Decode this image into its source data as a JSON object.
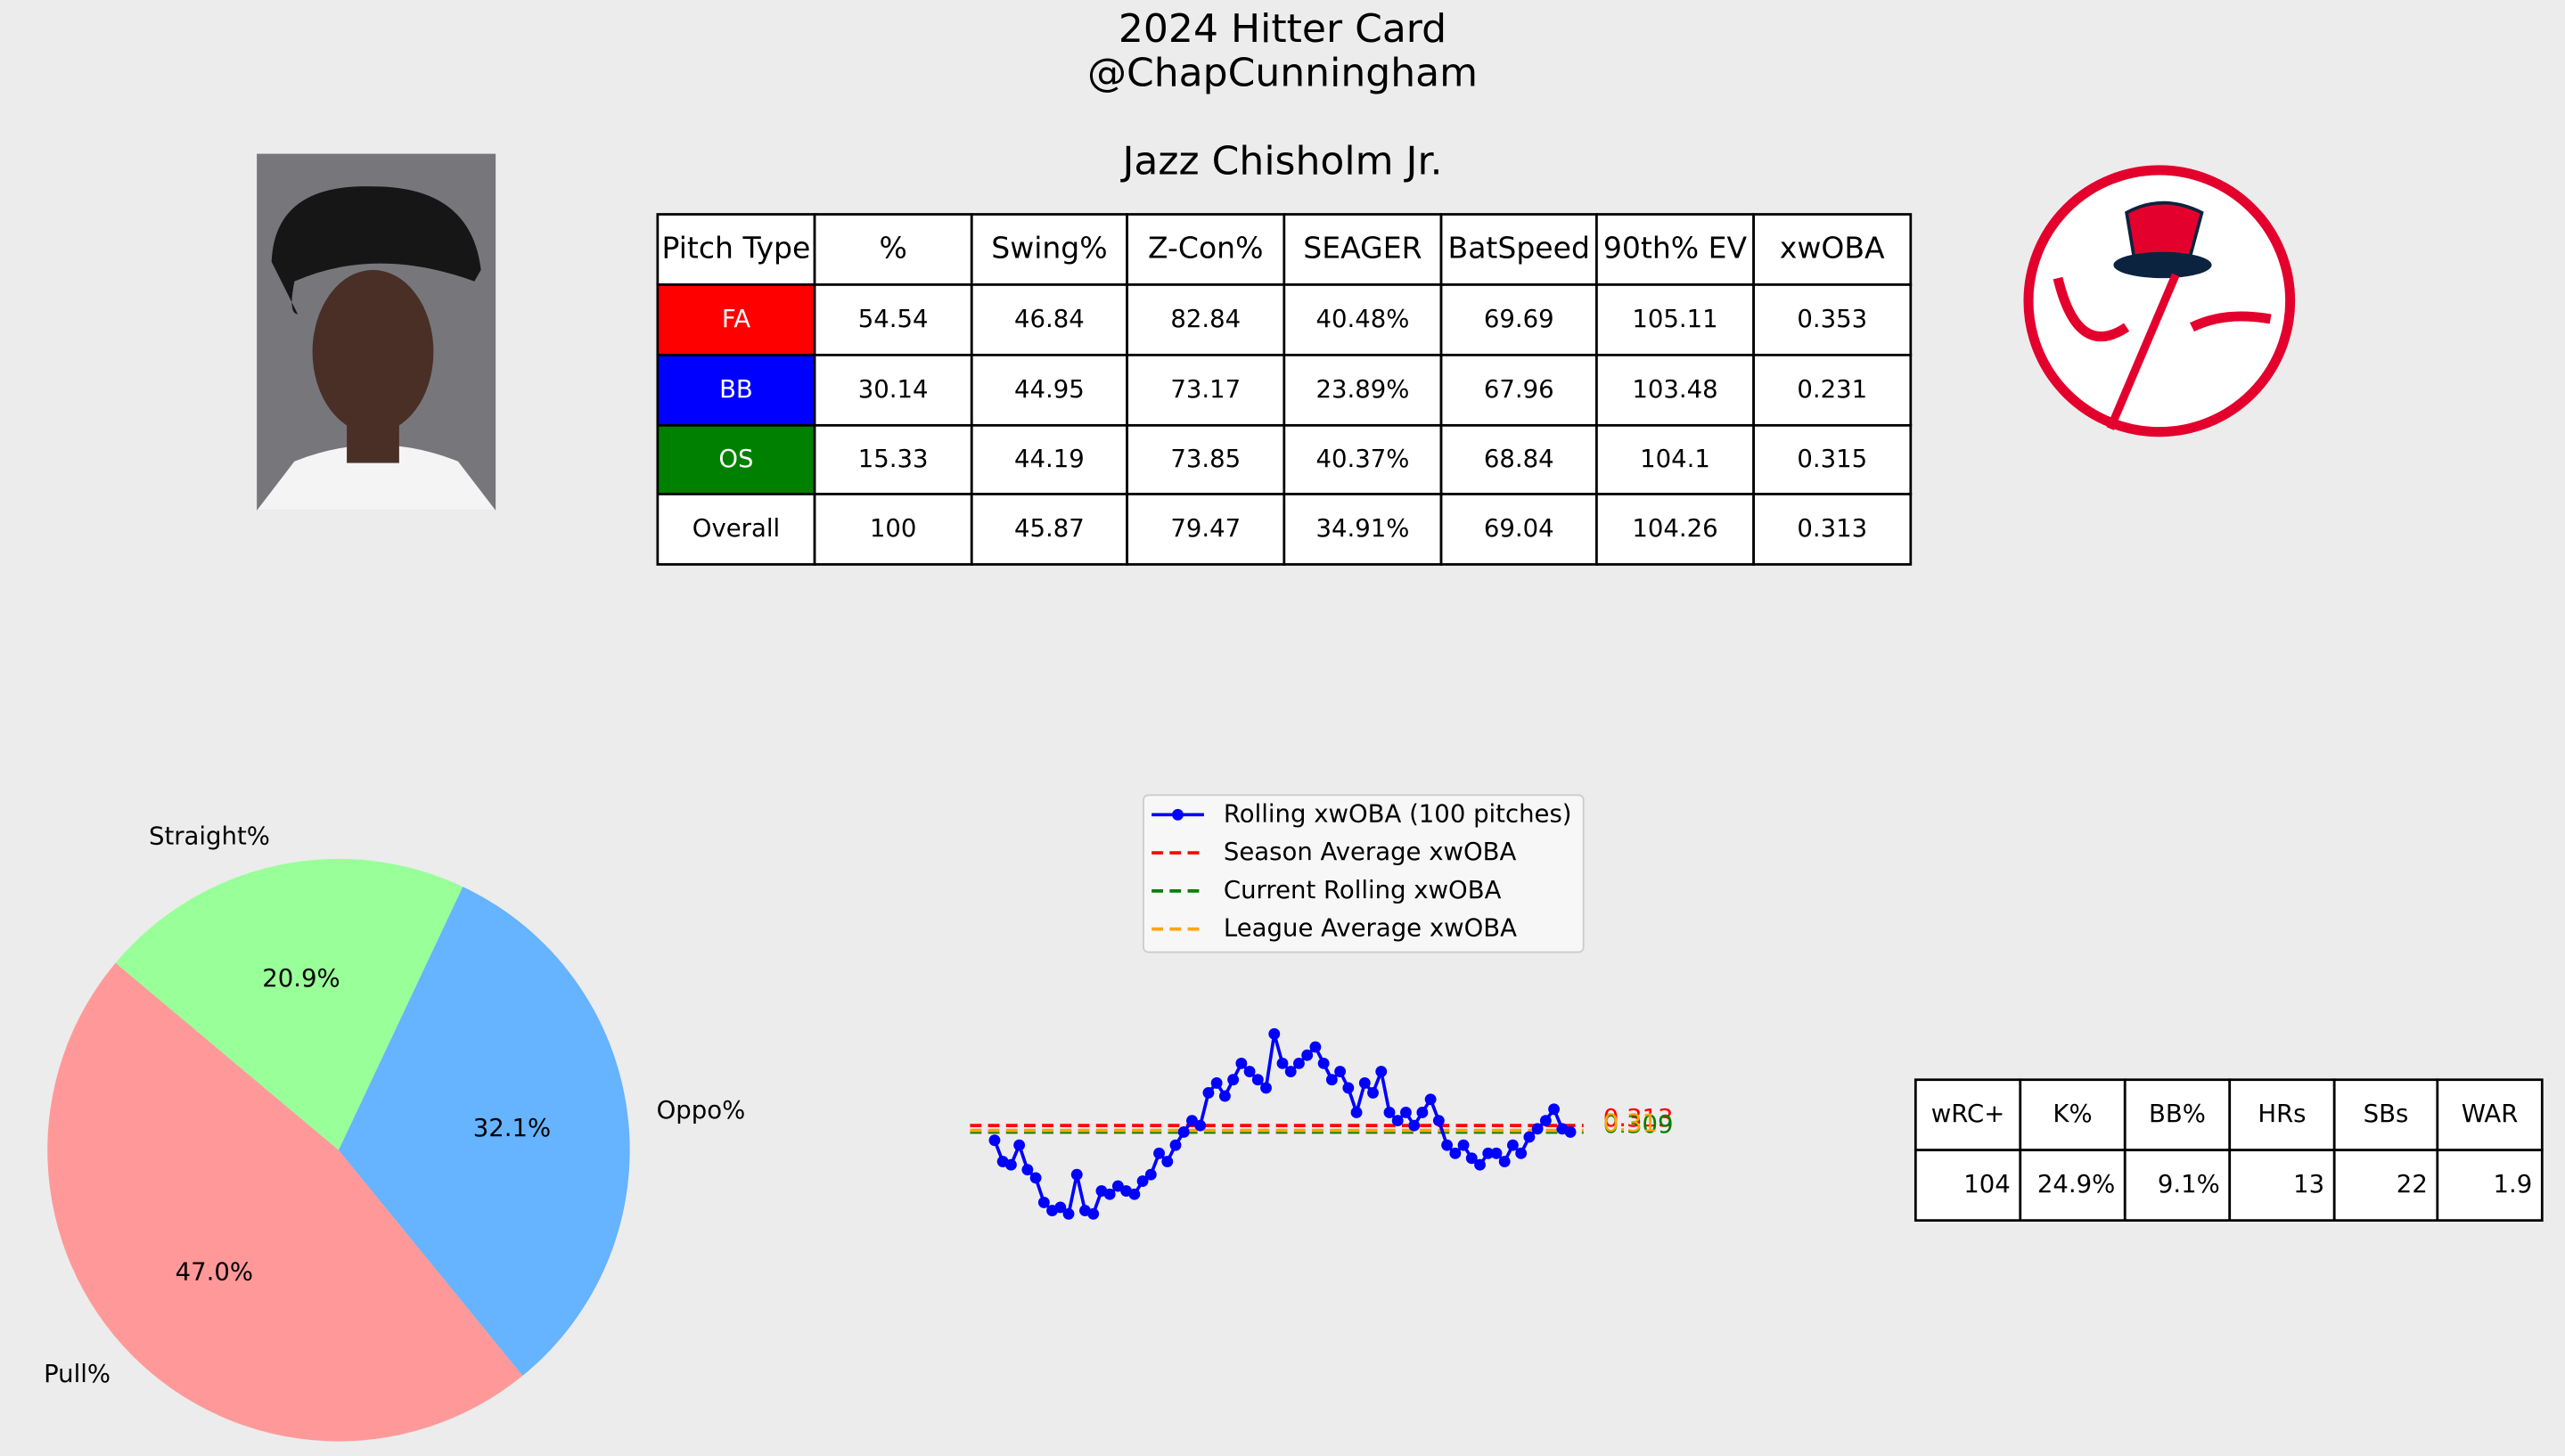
{
  "header": {
    "title": "2024 Hitter Card",
    "subtitle": "@ChapCunningham",
    "player": "Jazz Chisholm Jr."
  },
  "pitch_table": {
    "columns": [
      "Pitch Type",
      "%",
      "Swing%",
      "Z-Con%",
      "SEAGER",
      "BatSpeed",
      "90th% EV",
      "xwOBA"
    ],
    "rows": [
      [
        "FA",
        "54.54",
        "46.84",
        "82.84",
        "40.48%",
        "69.69",
        "105.11",
        "0.353"
      ],
      [
        "BB",
        "30.14",
        "44.95",
        "73.17",
        "23.89%",
        "67.96",
        "103.48",
        "0.231"
      ],
      [
        "OS",
        "15.33",
        "44.19",
        "73.85",
        "40.37%",
        "68.84",
        "104.1",
        "0.315"
      ],
      [
        "Overall",
        "100",
        "45.87",
        "79.47",
        "34.91%",
        "69.04",
        "104.26",
        "0.313"
      ]
    ],
    "row_colors": [
      "#ff0000",
      "#0000ff",
      "#008000",
      "#ffffff"
    ]
  },
  "chart_data": [
    {
      "type": "pie",
      "categories": [
        "Pull%",
        "Oppo%",
        "Straight%"
      ],
      "values": [
        47.0,
        32.1,
        20.9
      ],
      "value_labels": [
        "47.0%",
        "32.1%",
        "20.9%"
      ],
      "colors": [
        "#ff9999",
        "#66b3ff",
        "#99ff99"
      ]
    },
    {
      "type": "line",
      "ylim": [
        0.24,
        0.39
      ],
      "legend": "upper center",
      "series": [
        {
          "name": "Rolling xwOBA (100 pitches)",
          "color": "#0000ff",
          "values": [
            0.304,
            0.291,
            0.289,
            0.301,
            0.286,
            0.281,
            0.266,
            0.261,
            0.263,
            0.259,
            0.283,
            0.261,
            0.259,
            0.273,
            0.271,
            0.276,
            0.273,
            0.271,
            0.279,
            0.283,
            0.296,
            0.291,
            0.301,
            0.309,
            0.316,
            0.313,
            0.333,
            0.339,
            0.331,
            0.341,
            0.351,
            0.346,
            0.341,
            0.336,
            0.369,
            0.351,
            0.346,
            0.351,
            0.356,
            0.361,
            0.351,
            0.341,
            0.346,
            0.336,
            0.321,
            0.339,
            0.333,
            0.346,
            0.321,
            0.316,
            0.321,
            0.313,
            0.321,
            0.329,
            0.316,
            0.301,
            0.296,
            0.301,
            0.293,
            0.289,
            0.296,
            0.296,
            0.291,
            0.301,
            0.296,
            0.306,
            0.311,
            0.316,
            0.323,
            0.311,
            0.309
          ]
        }
      ],
      "hlines": [
        {
          "name": "Season Average xwOBA",
          "color": "#ff0000",
          "value": 0.313
        },
        {
          "name": "Current Rolling xwOBA",
          "color": "#008000",
          "value": 0.309
        },
        {
          "name": "League Average xwOBA",
          "color": "#ffa500",
          "value": 0.31
        }
      ]
    }
  ],
  "stats_table": {
    "columns": [
      "wRC+",
      "K%",
      "BB%",
      "HRs",
      "SBs",
      "WAR"
    ],
    "rows": [
      [
        "104",
        "24.9%",
        "9.1%",
        "13",
        "22",
        "1.9"
      ]
    ]
  }
}
